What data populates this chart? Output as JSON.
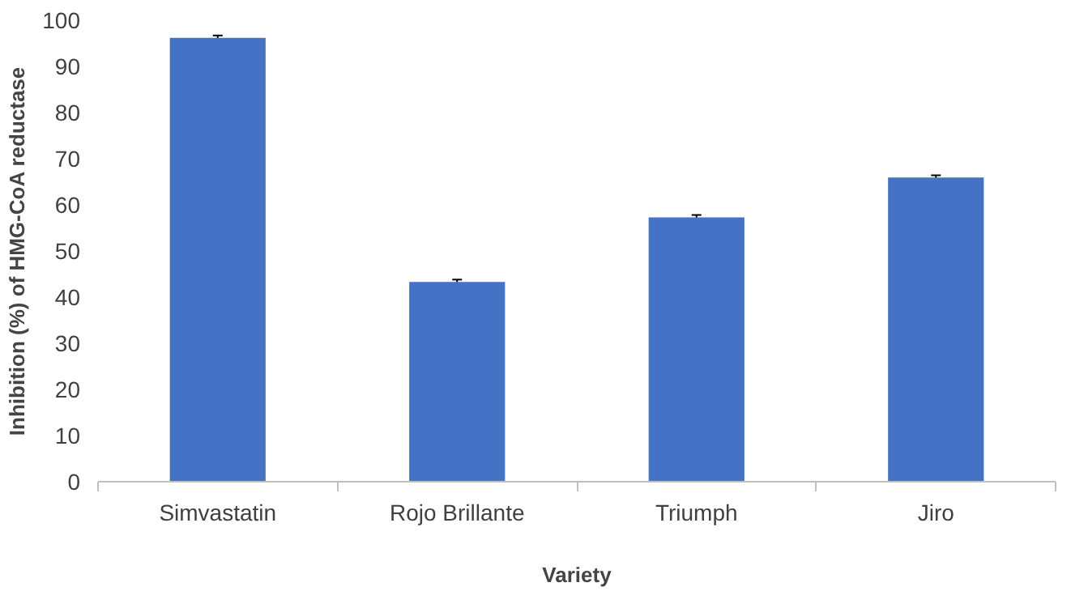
{
  "chart_data": {
    "type": "bar",
    "xlabel": "Variety",
    "ylabel": "Inhibition (%) of HMG-CoA reductase",
    "categories": [
      "Simvastatin",
      "Rojo Brillante",
      "Triumph",
      "Jiro"
    ],
    "values": [
      96.2,
      43.3,
      57.3,
      65.9
    ],
    "errors": [
      0.5,
      0.5,
      0.5,
      0.5
    ],
    "color": "#4472c4",
    "ylim": [
      0,
      100
    ],
    "yticks": [
      0,
      10,
      20,
      30,
      40,
      50,
      60,
      70,
      80,
      90,
      100
    ],
    "grid": false
  }
}
